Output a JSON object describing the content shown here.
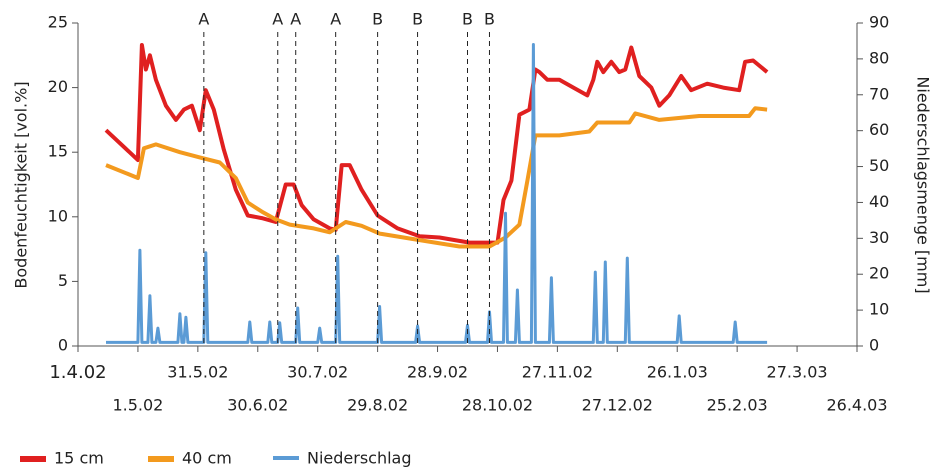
{
  "chart_data": {
    "type": "line",
    "ylabel": "Bodenfeuchtigkeit [vol.%]",
    "y2label": "Niederschlagsmenge [mm]",
    "xlim": [
      "2002-04-01",
      "2003-04-26"
    ],
    "xticks": [
      {
        "value": "2002-04-01",
        "label": "1.4.02"
      },
      {
        "value": "2002-05-01",
        "label": "1.5.02"
      },
      {
        "value": "2002-05-31",
        "label": "31.5.02"
      },
      {
        "value": "2002-06-30",
        "label": "30.6.02"
      },
      {
        "value": "2002-07-30",
        "label": "30.7.02"
      },
      {
        "value": "2002-08-29",
        "label": "29.8.02"
      },
      {
        "value": "2002-09-28",
        "label": "28.9.02"
      },
      {
        "value": "2002-10-28",
        "label": "28.10.02"
      },
      {
        "value": "2002-11-27",
        "label": "27.11.02"
      },
      {
        "value": "2002-12-27",
        "label": "27.12.02"
      },
      {
        "value": "2003-01-26",
        "label": "26.1.03"
      },
      {
        "value": "2003-02-25",
        "label": "25.2.03"
      },
      {
        "value": "2003-03-27",
        "label": "27.3.03"
      },
      {
        "value": "2003-04-26",
        "label": "26.4.03"
      }
    ],
    "ylim": [
      0,
      25
    ],
    "yticks": [
      0,
      5,
      10,
      15,
      20,
      25
    ],
    "y2lim": [
      0,
      90
    ],
    "y2ticks": [
      0,
      10,
      20,
      30,
      40,
      50,
      60,
      70,
      80,
      90
    ],
    "annotations": [
      {
        "label": "A",
        "x": "2002-06-03"
      },
      {
        "label": "A",
        "x": "2002-07-10"
      },
      {
        "label": "A",
        "x": "2002-07-19"
      },
      {
        "label": "A",
        "x": "2002-08-08"
      },
      {
        "label": "B",
        "x": "2002-08-29"
      },
      {
        "label": "B",
        "x": "2002-09-18"
      },
      {
        "label": "B",
        "x": "2002-10-13"
      },
      {
        "label": "B",
        "x": "2002-10-24"
      }
    ],
    "series": [
      {
        "name": "15 cm",
        "color": "#e02020",
        "axis": "y",
        "x": [
          "2002-04-15",
          "2002-05-01",
          "2002-05-03",
          "2002-05-05",
          "2002-05-07",
          "2002-05-10",
          "2002-05-15",
          "2002-05-20",
          "2002-05-24",
          "2002-05-28",
          "2002-06-01",
          "2002-06-04",
          "2002-06-08",
          "2002-06-13",
          "2002-06-19",
          "2002-06-25",
          "2002-07-02",
          "2002-07-09",
          "2002-07-14",
          "2002-07-18",
          "2002-07-22",
          "2002-07-28",
          "2002-08-05",
          "2002-08-08",
          "2002-08-11",
          "2002-08-15",
          "2002-08-21",
          "2002-08-29",
          "2002-09-08",
          "2002-09-19",
          "2002-09-29",
          "2002-10-14",
          "2002-10-28",
          "2002-10-31",
          "2002-11-04",
          "2002-11-08",
          "2002-11-13",
          "2002-11-16",
          "2002-11-18",
          "2002-11-22",
          "2002-11-28",
          "2002-12-05",
          "2002-12-12",
          "2002-12-15",
          "2002-12-17",
          "2002-12-20",
          "2002-12-24",
          "2002-12-28",
          "2002-12-31",
          "2003-01-03",
          "2003-01-07",
          "2003-01-13",
          "2003-01-17",
          "2003-01-22",
          "2003-01-28",
          "2003-02-02",
          "2003-02-10",
          "2003-02-18",
          "2003-02-26",
          "2003-03-01",
          "2003-03-05",
          "2003-03-12"
        ],
        "values": [
          16.7,
          14.4,
          23.3,
          21.4,
          22.5,
          20.6,
          18.6,
          17.5,
          18.3,
          18.6,
          16.7,
          19.8,
          18.3,
          15.2,
          12.1,
          10.1,
          9.9,
          9.6,
          12.5,
          12.5,
          10.9,
          9.8,
          9.1,
          9.0,
          14.0,
          14.0,
          12.1,
          10.1,
          9.1,
          8.5,
          8.4,
          8.0,
          8.0,
          11.3,
          12.8,
          17.9,
          18.3,
          21.4,
          21.2,
          20.6,
          20.6,
          20.0,
          19.4,
          20.6,
          22.0,
          21.2,
          22.0,
          21.2,
          21.4,
          23.1,
          20.9,
          20.0,
          18.6,
          19.4,
          20.9,
          19.8,
          20.3,
          20.0,
          19.8,
          22.0,
          22.1,
          21.2
        ]
      },
      {
        "name": "40 cm",
        "color": "#f39a1e",
        "axis": "y",
        "x": [
          "2002-04-15",
          "2002-05-01",
          "2002-05-04",
          "2002-05-10",
          "2002-05-22",
          "2002-06-01",
          "2002-06-11",
          "2002-06-19",
          "2002-06-25",
          "2002-07-02",
          "2002-07-09",
          "2002-07-16",
          "2002-07-28",
          "2002-08-05",
          "2002-08-13",
          "2002-08-21",
          "2002-08-30",
          "2002-09-19",
          "2002-10-09",
          "2002-10-24",
          "2002-11-01",
          "2002-11-08",
          "2002-11-12",
          "2002-11-16",
          "2002-11-28",
          "2002-12-13",
          "2002-12-17",
          "2003-01-02",
          "2003-01-05",
          "2003-01-17",
          "2003-02-06",
          "2003-03-03",
          "2003-03-06",
          "2003-03-12"
        ],
        "values": [
          14.0,
          13.0,
          15.3,
          15.6,
          15.0,
          14.6,
          14.2,
          13.0,
          11.1,
          10.4,
          9.8,
          9.4,
          9.1,
          8.8,
          9.6,
          9.3,
          8.7,
          8.2,
          7.7,
          7.7,
          8.4,
          9.4,
          12.8,
          16.3,
          16.3,
          16.6,
          17.3,
          17.3,
          18.0,
          17.5,
          17.8,
          17.8,
          18.4,
          18.3
        ]
      },
      {
        "name": "Niederschlag",
        "color": "#5b9bd5",
        "axis": "y2",
        "x": [
          "2002-04-15",
          "2002-05-01",
          "2002-05-02",
          "2002-05-03",
          "2002-05-06",
          "2002-05-07",
          "2002-05-08",
          "2002-05-10",
          "2002-05-11",
          "2002-05-12",
          "2002-05-21",
          "2002-05-22",
          "2002-05-23",
          "2002-05-24",
          "2002-05-25",
          "2002-05-26",
          "2002-06-03",
          "2002-06-04",
          "2002-06-05",
          "2002-06-25",
          "2002-06-26",
          "2002-06-27",
          "2002-07-05",
          "2002-07-06",
          "2002-07-07",
          "2002-07-10",
          "2002-07-11",
          "2002-07-12",
          "2002-07-19",
          "2002-07-20",
          "2002-07-21",
          "2002-07-30",
          "2002-07-31",
          "2002-08-01",
          "2002-08-08",
          "2002-08-09",
          "2002-08-10",
          "2002-08-29",
          "2002-08-30",
          "2002-08-31",
          "2002-09-17",
          "2002-09-18",
          "2002-09-19",
          "2002-10-12",
          "2002-10-13",
          "2002-10-14",
          "2002-10-23",
          "2002-10-24",
          "2002-10-25",
          "2002-10-31",
          "2002-11-01",
          "2002-11-02",
          "2002-11-06",
          "2002-11-07",
          "2002-11-08",
          "2002-11-14",
          "2002-11-15",
          "2002-11-16",
          "2002-11-23",
          "2002-11-24",
          "2002-11-25",
          "2002-12-15",
          "2002-12-16",
          "2002-12-17",
          "2002-12-20",
          "2002-12-21",
          "2002-12-22",
          "2002-12-31",
          "2003-01-01",
          "2003-01-02",
          "2003-01-26",
          "2003-01-27",
          "2003-01-28",
          "2003-02-23",
          "2003-02-24",
          "2003-02-25",
          "2003-03-12"
        ],
        "values": [
          1,
          1,
          26.7,
          1,
          1,
          14,
          1,
          1,
          5,
          1,
          1,
          9,
          1,
          1,
          8,
          1,
          1,
          26,
          1,
          1,
          6.7,
          1,
          1,
          6.7,
          1,
          1,
          6.5,
          1,
          1,
          10.6,
          1,
          1,
          5,
          1,
          1,
          25,
          1,
          1,
          11,
          1,
          1,
          5.6,
          1,
          1,
          5.8,
          1,
          1,
          9.5,
          1,
          1,
          37,
          1,
          1,
          15.6,
          1,
          1,
          84,
          1,
          1,
          19,
          1,
          1,
          20.6,
          1,
          1,
          23.4,
          1,
          1,
          24.5,
          1,
          1,
          8.4,
          1,
          1,
          6.7,
          1,
          1
        ]
      }
    ]
  }
}
